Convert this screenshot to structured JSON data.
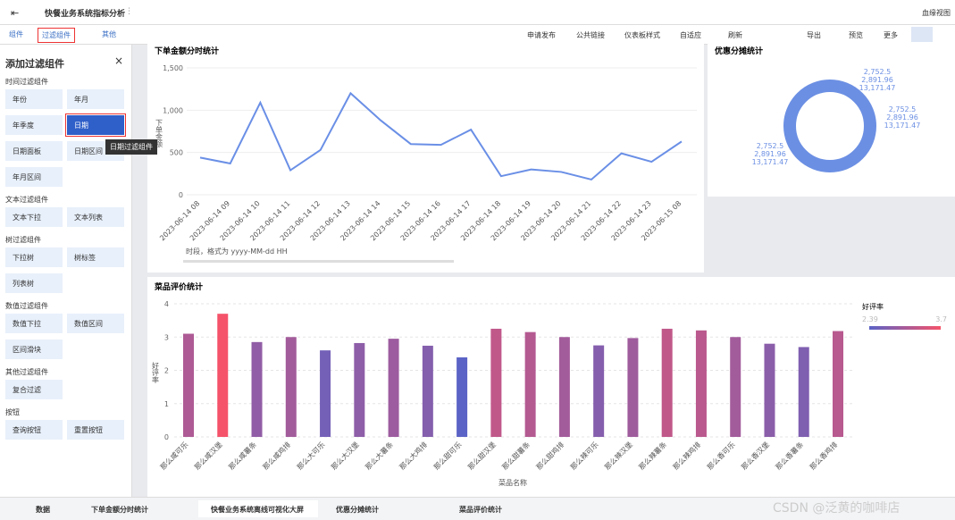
{
  "header": {
    "title": "快餐业务系统指标分析",
    "lineage": "血缘视图"
  },
  "toolbar": {
    "left": [
      "组件",
      "过滤组件",
      "其他"
    ],
    "right": [
      "申请发布",
      "公共链接",
      "仪表板样式",
      "自适应",
      "刷新",
      "导出",
      "预览",
      "更多"
    ]
  },
  "panel": {
    "title": "添加过滤组件",
    "tooltip": "日期过滤组件",
    "groups": [
      {
        "name": "时间过滤组件",
        "items": [
          "年份",
          "年月",
          "年季度",
          "日期",
          "日期面板",
          "日期区间",
          "年月区间"
        ]
      },
      {
        "name": "文本过滤组件",
        "items": [
          "文本下拉",
          "文本列表"
        ]
      },
      {
        "name": "树过滤组件",
        "items": [
          "下拉树",
          "树标签",
          "列表树"
        ]
      },
      {
        "name": "数值过滤组件",
        "items": [
          "数值下拉",
          "数值区间",
          "区间滑块"
        ]
      },
      {
        "name": "其他过滤组件",
        "items": [
          "复合过滤"
        ]
      },
      {
        "name": "按钮",
        "items": [
          "查询按钮",
          "重置按钮"
        ]
      }
    ]
  },
  "chart_data": [
    {
      "type": "line",
      "title": "下单金额分时统计",
      "y_label": "下单金额",
      "x_note": "时段，格式为 yyyy-MM-dd HH",
      "color": "#6a8fe6",
      "categories": [
        "2023-06-14 08",
        "2023-06-14 09",
        "2023-06-14 10",
        "2023-06-14 11",
        "2023-06-14 12",
        "2023-06-14 13",
        "2023-06-14 14",
        "2023-06-14 15",
        "2023-06-14 16",
        "2023-06-14 17",
        "2023-06-14 18",
        "2023-06-14 19",
        "2023-06-14 20",
        "2023-06-14 21",
        "2023-06-14 22",
        "2023-06-14 23",
        "2023-06-15 08"
      ],
      "values": [
        440,
        370,
        1090,
        290,
        530,
        1200,
        880,
        600,
        590,
        770,
        220,
        300,
        270,
        180,
        490,
        390,
        630
      ],
      "ylim": [
        0,
        1500
      ],
      "yticks": [
        0,
        500,
        {
          "value": 1000,
          "label": "1,000"
        },
        {
          "value": 1500,
          "label": "1,500"
        }
      ],
      "grid": true
    },
    {
      "type": "pie",
      "title": "优惠分摊统计",
      "color": "#6b8fe3",
      "label_groups": [
        {
          "values": [
            2752.5,
            2891.96,
            13171.47
          ],
          "value_labels": [
            "2,752.5",
            "2,891.96",
            "13,171.47"
          ]
        },
        {
          "values": [
            2752.5,
            2891.96,
            13171.47
          ],
          "value_labels": [
            "2,752.5",
            "2,891.96",
            "13,171.47"
          ]
        },
        {
          "values": [
            2752.5,
            2891.96,
            13171.47
          ],
          "value_labels": [
            "2,752.5",
            "2,891.96",
            "13,171.47"
          ]
        }
      ]
    },
    {
      "type": "bar",
      "title": "菜品评价统计",
      "x_label": "菜品名称",
      "y_label": "好评率",
      "categories": [
        "那么咸可乐",
        "那么咸汉堡",
        "那么咸薯条",
        "那么咸鸡排",
        "那么大可乐",
        "那么大汉堡",
        "那么大薯条",
        "那么大鸡排",
        "那么甜可乐",
        "那么甜汉堡",
        "那么甜薯条",
        "那么甜鸡排",
        "那么辣可乐",
        "那么辣汉堡",
        "那么辣薯条",
        "那么辣鸡排",
        "那么香可乐",
        "那么香汉堡",
        "那么香薯条",
        "那么香鸡排"
      ],
      "values": [
        3.1,
        3.7,
        2.85,
        3.0,
        2.6,
        2.82,
        2.95,
        2.74,
        2.39,
        3.25,
        3.15,
        3.0,
        2.75,
        2.97,
        3.25,
        3.2,
        3.0,
        2.8,
        2.7,
        3.18
      ],
      "ylim": [
        0,
        4
      ],
      "yticks": [
        0,
        1,
        2,
        3,
        4
      ],
      "grid": true,
      "visual_map": {
        "title": "好评率",
        "min": 2.39,
        "max": 3.7,
        "colors": [
          "#5b63c6",
          "#f5536a"
        ]
      }
    }
  ],
  "tabs": [
    "数据",
    "下单金额分时统计",
    "快餐业务系统离线可视化大屏",
    "优惠分摊统计",
    "菜品评价统计"
  ],
  "watermark": "CSDN @泛黄的咖啡店"
}
